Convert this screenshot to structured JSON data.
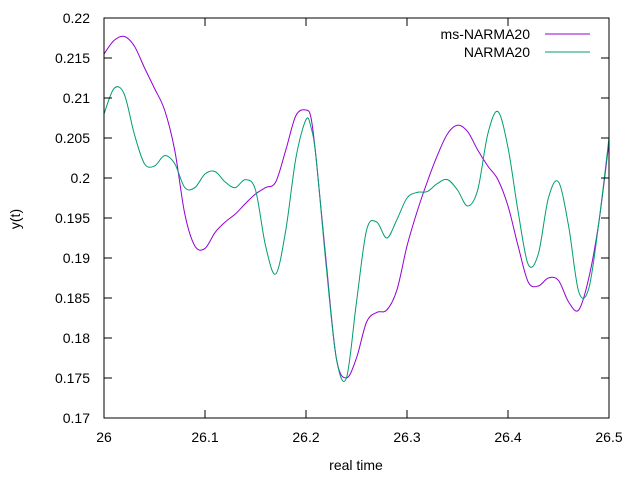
{
  "chart_data": {
    "type": "line",
    "title": "",
    "xlabel": "real time",
    "ylabel": "y(t)",
    "xlim": [
      26,
      26.5
    ],
    "ylim": [
      0.17,
      0.22
    ],
    "x_ticks": [
      "26",
      "26.1",
      "26.2",
      "26.3",
      "26.4",
      "26.5"
    ],
    "y_ticks": [
      "0.17",
      "0.175",
      "0.18",
      "0.185",
      "0.19",
      "0.195",
      "0.2",
      "0.205",
      "0.21",
      "0.215",
      "0.22"
    ],
    "grid": false,
    "legend_position": "top-right",
    "series": [
      {
        "name": "ms-NARMA20",
        "color": "#9400d3",
        "x": [
          26.0,
          26.01,
          26.02,
          26.03,
          26.04,
          26.05,
          26.06,
          26.07,
          26.08,
          26.09,
          26.1,
          26.11,
          26.12,
          26.13,
          26.14,
          26.15,
          26.16,
          26.17,
          26.18,
          26.19,
          26.2,
          26.205,
          26.21,
          26.22,
          26.23,
          26.24,
          26.25,
          26.26,
          26.27,
          26.28,
          26.29,
          26.3,
          26.31,
          26.32,
          26.33,
          26.34,
          26.35,
          26.36,
          26.37,
          26.38,
          26.39,
          26.4,
          26.41,
          26.42,
          26.43,
          26.44,
          26.45,
          26.46,
          26.47,
          26.48,
          26.49,
          26.5
        ],
        "y": [
          0.2155,
          0.2172,
          0.2177,
          0.2165,
          0.2138,
          0.2112,
          0.2085,
          0.2035,
          0.1955,
          0.1915,
          0.1912,
          0.1932,
          0.1945,
          0.1955,
          0.1968,
          0.198,
          0.1988,
          0.1995,
          0.2035,
          0.2078,
          0.2085,
          0.2075,
          0.2025,
          0.1895,
          0.1775,
          0.175,
          0.1775,
          0.182,
          0.1832,
          0.1835,
          0.186,
          0.1915,
          0.1958,
          0.1995,
          0.2028,
          0.2055,
          0.2066,
          0.2058,
          0.2035,
          0.2015,
          0.1998,
          0.1965,
          0.1915,
          0.187,
          0.1865,
          0.1875,
          0.1872,
          0.1845,
          0.1835,
          0.1875,
          0.1945,
          0.2045
        ]
      },
      {
        "name": "NARMA20",
        "color": "#009e73",
        "x": [
          26.0,
          26.01,
          26.02,
          26.03,
          26.04,
          26.05,
          26.06,
          26.07,
          26.08,
          26.09,
          26.1,
          26.11,
          26.12,
          26.13,
          26.14,
          26.15,
          26.16,
          26.17,
          26.18,
          26.19,
          26.2,
          26.205,
          26.21,
          26.22,
          26.23,
          26.24,
          26.25,
          26.26,
          26.27,
          26.28,
          26.29,
          26.3,
          26.31,
          26.32,
          26.33,
          26.34,
          26.35,
          26.36,
          26.37,
          26.38,
          26.39,
          26.4,
          26.41,
          26.42,
          26.43,
          26.44,
          26.45,
          26.46,
          26.47,
          26.48,
          26.49,
          26.5
        ],
        "y": [
          0.208,
          0.2112,
          0.2105,
          0.2055,
          0.2018,
          0.2015,
          0.2028,
          0.2018,
          0.1988,
          0.1988,
          0.2005,
          0.2008,
          0.1995,
          0.1988,
          0.1998,
          0.1985,
          0.1915,
          0.188,
          0.1935,
          0.2025,
          0.2073,
          0.2063,
          0.2025,
          0.189,
          0.1775,
          0.175,
          0.1845,
          0.1935,
          0.1945,
          0.1925,
          0.1948,
          0.1975,
          0.1982,
          0.1983,
          0.1993,
          0.1998,
          0.1985,
          0.1965,
          0.1985,
          0.2055,
          0.2083,
          0.2038,
          0.1958,
          0.1892,
          0.1905,
          0.1975,
          0.1995,
          0.194,
          0.1858,
          0.1862,
          0.1945,
          0.205
        ]
      }
    ]
  }
}
